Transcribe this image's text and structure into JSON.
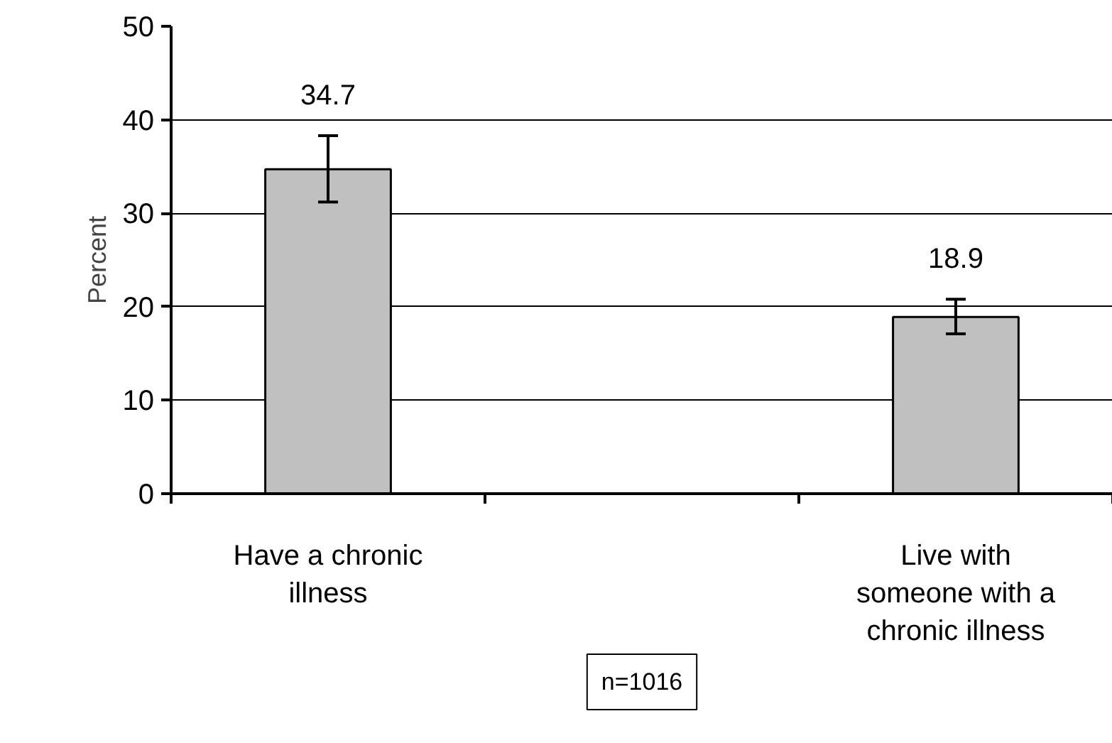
{
  "chart_data": {
    "type": "bar",
    "ylabel": "Percent",
    "categories": [
      "Have a chronic illness",
      null,
      "Live with someone with a chronic illness"
    ],
    "series": [
      {
        "color": "#c0c0c0",
        "values": [
          34.7,
          null,
          18.9
        ],
        "errors": [
          [
            31.2,
            38.3
          ],
          null,
          [
            17.1,
            20.8
          ]
        ]
      }
    ],
    "ylim": [
      0,
      50
    ],
    "yticks": [
      0,
      10,
      20,
      30,
      40,
      50
    ],
    "grid": "y",
    "data_labels": true,
    "annotations": [
      "n=1016"
    ]
  }
}
